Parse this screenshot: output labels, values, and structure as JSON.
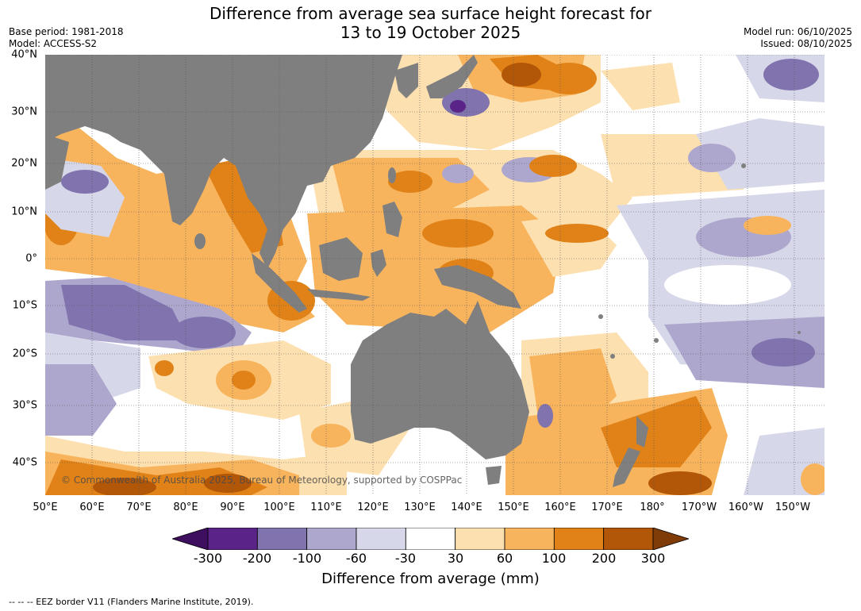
{
  "title_line1": "Difference from average sea surface height forecast for",
  "title_line2": "13 to 19 October 2025",
  "base_period": "Base period: 1981-2018",
  "model": "Model: ACCESS-S2",
  "model_run": "Model run: 06/10/2025",
  "issued": "Issued: 08/10/2025",
  "lat_labels": [
    "40°N",
    "30°N",
    "20°N",
    "10°N",
    "0°",
    "10°S",
    "20°S",
    "30°S",
    "40°S"
  ],
  "lon_labels": [
    "50°E",
    "60°E",
    "70°E",
    "80°E",
    "90°E",
    "100°E",
    "110°E",
    "120°E",
    "130°E",
    "140°E",
    "150°E",
    "160°E",
    "170°E",
    "180°",
    "170°W",
    "160°W",
    "150°W"
  ],
  "copyright": "© Commonwealth of Australia 2025, Bureau of Meteorology, supported by COSPPac",
  "colorbar": {
    "ticks": [
      "-300",
      "-200",
      "-100",
      "-60",
      "-30",
      "30",
      "60",
      "100",
      "200",
      "300"
    ],
    "colors": [
      "#3d0f5e",
      "#5a2387",
      "#8073ae",
      "#aea7cd",
      "#d7d7ea",
      "#ffffff",
      "#fde0b0",
      "#f8b45c",
      "#e08217",
      "#b25608",
      "#7f3b08"
    ],
    "title": "Difference from average (mm)"
  },
  "legend_footer": "--  --  -- EEZ border V11 (Flanders Marine Institute, 2019).",
  "land_color": "#7f7f7f"
}
